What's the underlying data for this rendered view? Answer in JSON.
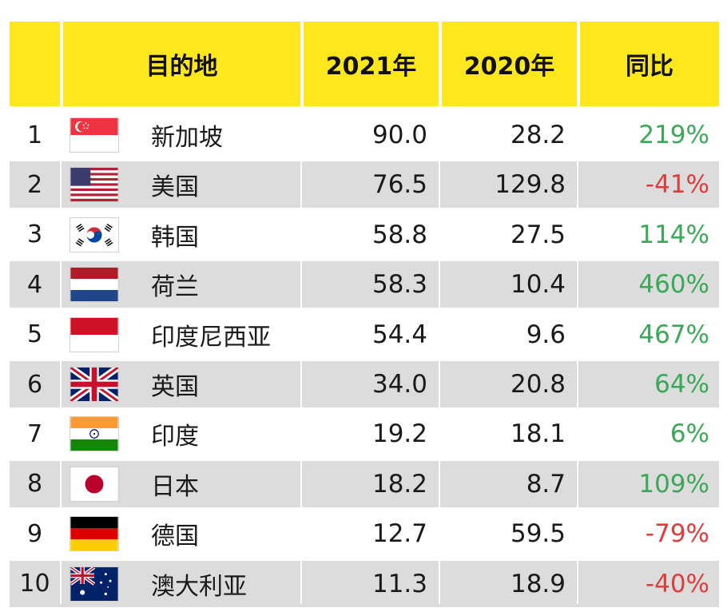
{
  "chart_data": {
    "type": "table",
    "columns": [
      "",
      "目的地",
      "2021年",
      "2020年",
      "同比"
    ],
    "rows": [
      {
        "rank": "1",
        "flag": "singapore-flag-icon",
        "destination": "新加坡",
        "y2021": "90.0",
        "y2020": "28.2",
        "yoy": "219%",
        "sign": "pos"
      },
      {
        "rank": "2",
        "flag": "usa-flag-icon",
        "destination": "美国",
        "y2021": "76.5",
        "y2020": "129.8",
        "yoy": "-41%",
        "sign": "neg"
      },
      {
        "rank": "3",
        "flag": "south-korea-flag-icon",
        "destination": "韩国",
        "y2021": "58.8",
        "y2020": "27.5",
        "yoy": "114%",
        "sign": "pos"
      },
      {
        "rank": "4",
        "flag": "netherlands-flag-icon",
        "destination": "荷兰",
        "y2021": "58.3",
        "y2020": "10.4",
        "yoy": "460%",
        "sign": "pos"
      },
      {
        "rank": "5",
        "flag": "indonesia-flag-icon",
        "destination": "印度尼西亚",
        "y2021": "54.4",
        "y2020": "9.6",
        "yoy": "467%",
        "sign": "pos"
      },
      {
        "rank": "6",
        "flag": "uk-flag-icon",
        "destination": "英国",
        "y2021": "34.0",
        "y2020": "20.8",
        "yoy": "64%",
        "sign": "pos"
      },
      {
        "rank": "7",
        "flag": "india-flag-icon",
        "destination": "印度",
        "y2021": "19.2",
        "y2020": "18.1",
        "yoy": "6%",
        "sign": "pos"
      },
      {
        "rank": "8",
        "flag": "japan-flag-icon",
        "destination": "日本",
        "y2021": "18.2",
        "y2020": "8.7",
        "yoy": "109%",
        "sign": "pos"
      },
      {
        "rank": "9",
        "flag": "germany-flag-icon",
        "destination": "德国",
        "y2021": "12.7",
        "y2020": "59.5",
        "yoy": "-79%",
        "sign": "neg"
      },
      {
        "rank": "10",
        "flag": "australia-flag-icon",
        "destination": "澳大利亚",
        "y2021": "11.3",
        "y2020": "18.9",
        "yoy": "-40%",
        "sign": "neg"
      }
    ]
  },
  "colors": {
    "header_bg": "#ffe71e",
    "row_shade": "#dcdcdc",
    "positive": "#3aa957",
    "negative": "#e03c3c"
  }
}
